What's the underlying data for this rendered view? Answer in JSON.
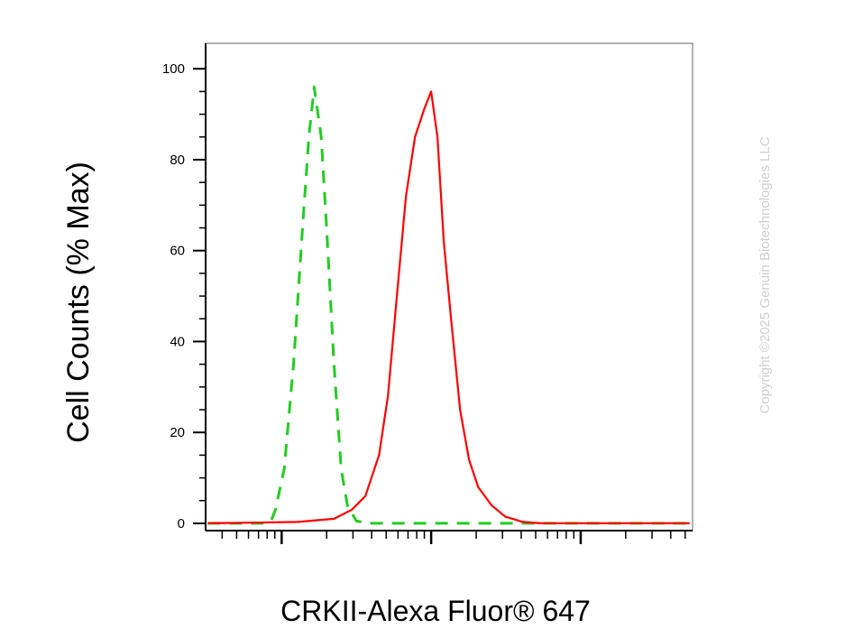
{
  "chart_data": {
    "type": "line",
    "x_label": "CRKII-Alexa Fluor® 647",
    "y_label": "Cell Counts (% Max)",
    "watermark": "Copyright ©2025 Genuin Biotechnologies LLC",
    "xscale": "log",
    "xlim": [
      3.1,
      5600
    ],
    "xticks": [
      10,
      100,
      1000
    ],
    "ylim": [
      -1.6,
      105.6
    ],
    "yticks": [
      0,
      20,
      40,
      60,
      80,
      100
    ],
    "series": [
      {
        "color": "#22cc22",
        "dash": true,
        "x": [
          3.2,
          7.4,
          8.5,
          9.1,
          10.4,
          12.0,
          13.8,
          15.2,
          16.5,
          18.4,
          20.0,
          22.4,
          25.0,
          27.5,
          31.6,
          38.9,
          135.8,
          543,
          2173,
          5358
        ],
        "values": [
          0,
          0,
          0.5,
          3,
          12,
          35,
          65,
          85,
          96,
          85,
          65,
          35,
          12,
          4,
          0.5,
          0,
          0,
          0,
          0,
          0
        ]
      },
      {
        "color": "#ff0000",
        "dash": false,
        "x": [
          3.2,
          12.8,
          22.4,
          29.5,
          36.3,
          44.8,
          51.4,
          59.0,
          67.8,
          78.0,
          89.5,
          100,
          110.2,
          121.4,
          135.8,
          156,
          179,
          206,
          253,
          312,
          411,
          543,
          2173,
          5358
        ],
        "values": [
          0,
          0.3,
          1,
          3,
          6,
          15,
          28,
          50,
          72,
          85,
          91,
          95,
          85,
          62,
          45,
          25,
          14,
          8,
          4,
          1.5,
          0.3,
          0,
          0,
          0
        ]
      }
    ]
  }
}
